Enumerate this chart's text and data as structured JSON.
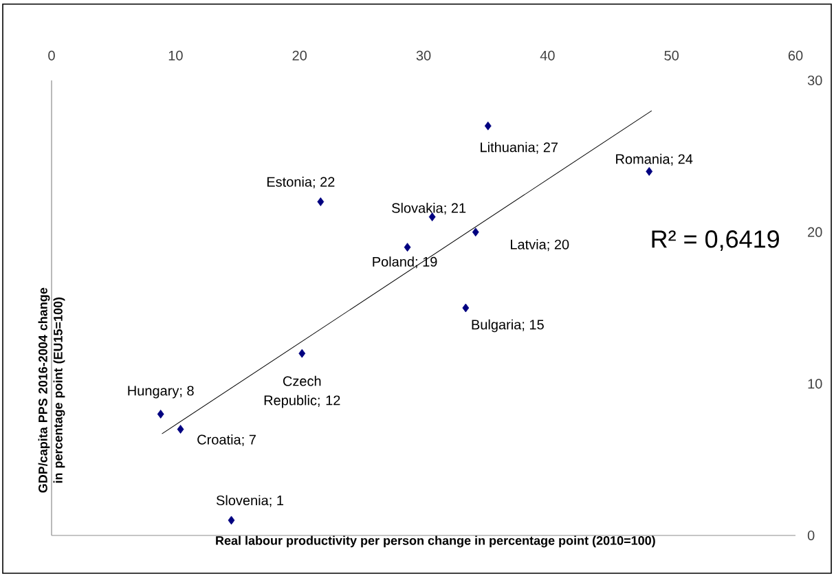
{
  "chart_data": {
    "type": "scatter",
    "xlabel": "Real labour productivity per person change in percentage point (2010=100)",
    "ylabel": "GDP/capita PPS 2016-2004 change in percentage point (EU15=100)",
    "xlim": [
      0,
      60
    ],
    "ylim": [
      0,
      30
    ],
    "xticks": [
      0,
      10,
      20,
      30,
      40,
      50,
      60
    ],
    "yticks": [
      0,
      10,
      20,
      30
    ],
    "series": [
      {
        "marker": "diamond",
        "color": "#000080",
        "x": [
          8.8,
          10.4,
          14.5,
          20.2,
          21.7,
          28.7,
          30.7,
          33.4,
          34.2,
          35.2,
          48.2
        ],
        "values": [
          8,
          7,
          1,
          12,
          22,
          19,
          21,
          15,
          20,
          27,
          24
        ]
      },
      {
        "type": "line",
        "marker": "none",
        "color": "#000000",
        "x": [
          8.9,
          48.4
        ],
        "values": [
          6.7,
          28.0
        ]
      }
    ],
    "annotations": [
      {
        "text": "Hungary; 8",
        "x": 8.8,
        "y": 8
      },
      {
        "text": "Croatia; 7",
        "x": 10.4,
        "y": 7
      },
      {
        "text": "Slovenia; 1",
        "x": 14.5,
        "y": 1
      },
      {
        "text": "Czech Republic; 12",
        "x": 20.2,
        "y": 12
      },
      {
        "text": "Estonia; 22",
        "x": 21.7,
        "y": 22
      },
      {
        "text": "Poland; 19",
        "x": 28.7,
        "y": 19
      },
      {
        "text": "Slovakia; 21",
        "x": 30.7,
        "y": 21
      },
      {
        "text": "Bulgaria; 15",
        "x": 33.4,
        "y": 15
      },
      {
        "text": "Latvia; 20",
        "x": 34.2,
        "y": 20
      },
      {
        "text": "Lithuania; 27",
        "x": 35.2,
        "y": 27
      },
      {
        "text": "Romania; 24",
        "x": 48.2,
        "y": 24
      },
      "R² = 0,6419"
    ]
  }
}
